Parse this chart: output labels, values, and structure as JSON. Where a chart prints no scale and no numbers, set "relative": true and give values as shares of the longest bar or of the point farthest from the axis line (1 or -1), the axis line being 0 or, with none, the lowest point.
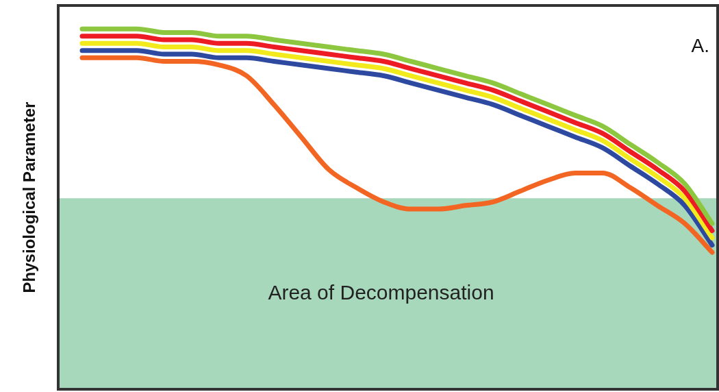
{
  "chart_data": {
    "type": "line",
    "relative": true,
    "ylabel": "Physiological Parameter",
    "annotations": [
      "A."
    ],
    "categories": [
      null,
      null,
      null,
      null,
      null,
      null,
      null,
      null,
      null,
      null,
      null,
      null,
      null,
      null,
      null,
      null,
      null,
      null,
      null,
      null,
      null,
      null,
      null,
      null
    ],
    "series": [
      {
        "color": "#8dc63f",
        "values": [
          1.0,
          1.0,
          1.0,
          0.99,
          0.99,
          0.98,
          0.98,
          0.97,
          0.96,
          0.95,
          0.94,
          0.93,
          0.91,
          0.89,
          0.87,
          0.85,
          0.82,
          0.79,
          0.76,
          0.73,
          0.68,
          0.63,
          0.57,
          0.46
        ]
      },
      {
        "color": "#ed1c24",
        "values": [
          0.98,
          0.98,
          0.98,
          0.97,
          0.97,
          0.96,
          0.96,
          0.95,
          0.94,
          0.93,
          0.92,
          0.91,
          0.89,
          0.87,
          0.85,
          0.83,
          0.8,
          0.77,
          0.74,
          0.71,
          0.66,
          0.61,
          0.55,
          0.44
        ]
      },
      {
        "color": "#f2ea1c",
        "values": [
          0.96,
          0.96,
          0.96,
          0.95,
          0.95,
          0.94,
          0.94,
          0.93,
          0.92,
          0.91,
          0.9,
          0.89,
          0.87,
          0.85,
          0.83,
          0.81,
          0.78,
          0.75,
          0.72,
          0.69,
          0.64,
          0.59,
          0.53,
          0.42
        ]
      },
      {
        "color": "#2e4aa0",
        "values": [
          0.94,
          0.94,
          0.94,
          0.93,
          0.93,
          0.92,
          0.92,
          0.91,
          0.9,
          0.89,
          0.88,
          0.87,
          0.85,
          0.83,
          0.81,
          0.79,
          0.76,
          0.73,
          0.7,
          0.67,
          0.62,
          0.57,
          0.51,
          0.4
        ]
      },
      {
        "color": "#f26522",
        "values": [
          0.92,
          0.92,
          0.92,
          0.91,
          0.91,
          0.9,
          0.87,
          0.79,
          0.7,
          0.61,
          0.56,
          0.52,
          0.5,
          0.5,
          0.51,
          0.52,
          0.55,
          0.58,
          0.6,
          0.6,
          0.56,
          0.51,
          0.46,
          0.38
        ]
      }
    ],
    "bands": [
      {
        "axis": "y",
        "from": 0,
        "to": 0.53,
        "label": "Area of Decompensation",
        "color": "#a8d8bc"
      }
    ],
    "legend": false,
    "marker": "none",
    "line_style": "solid"
  }
}
